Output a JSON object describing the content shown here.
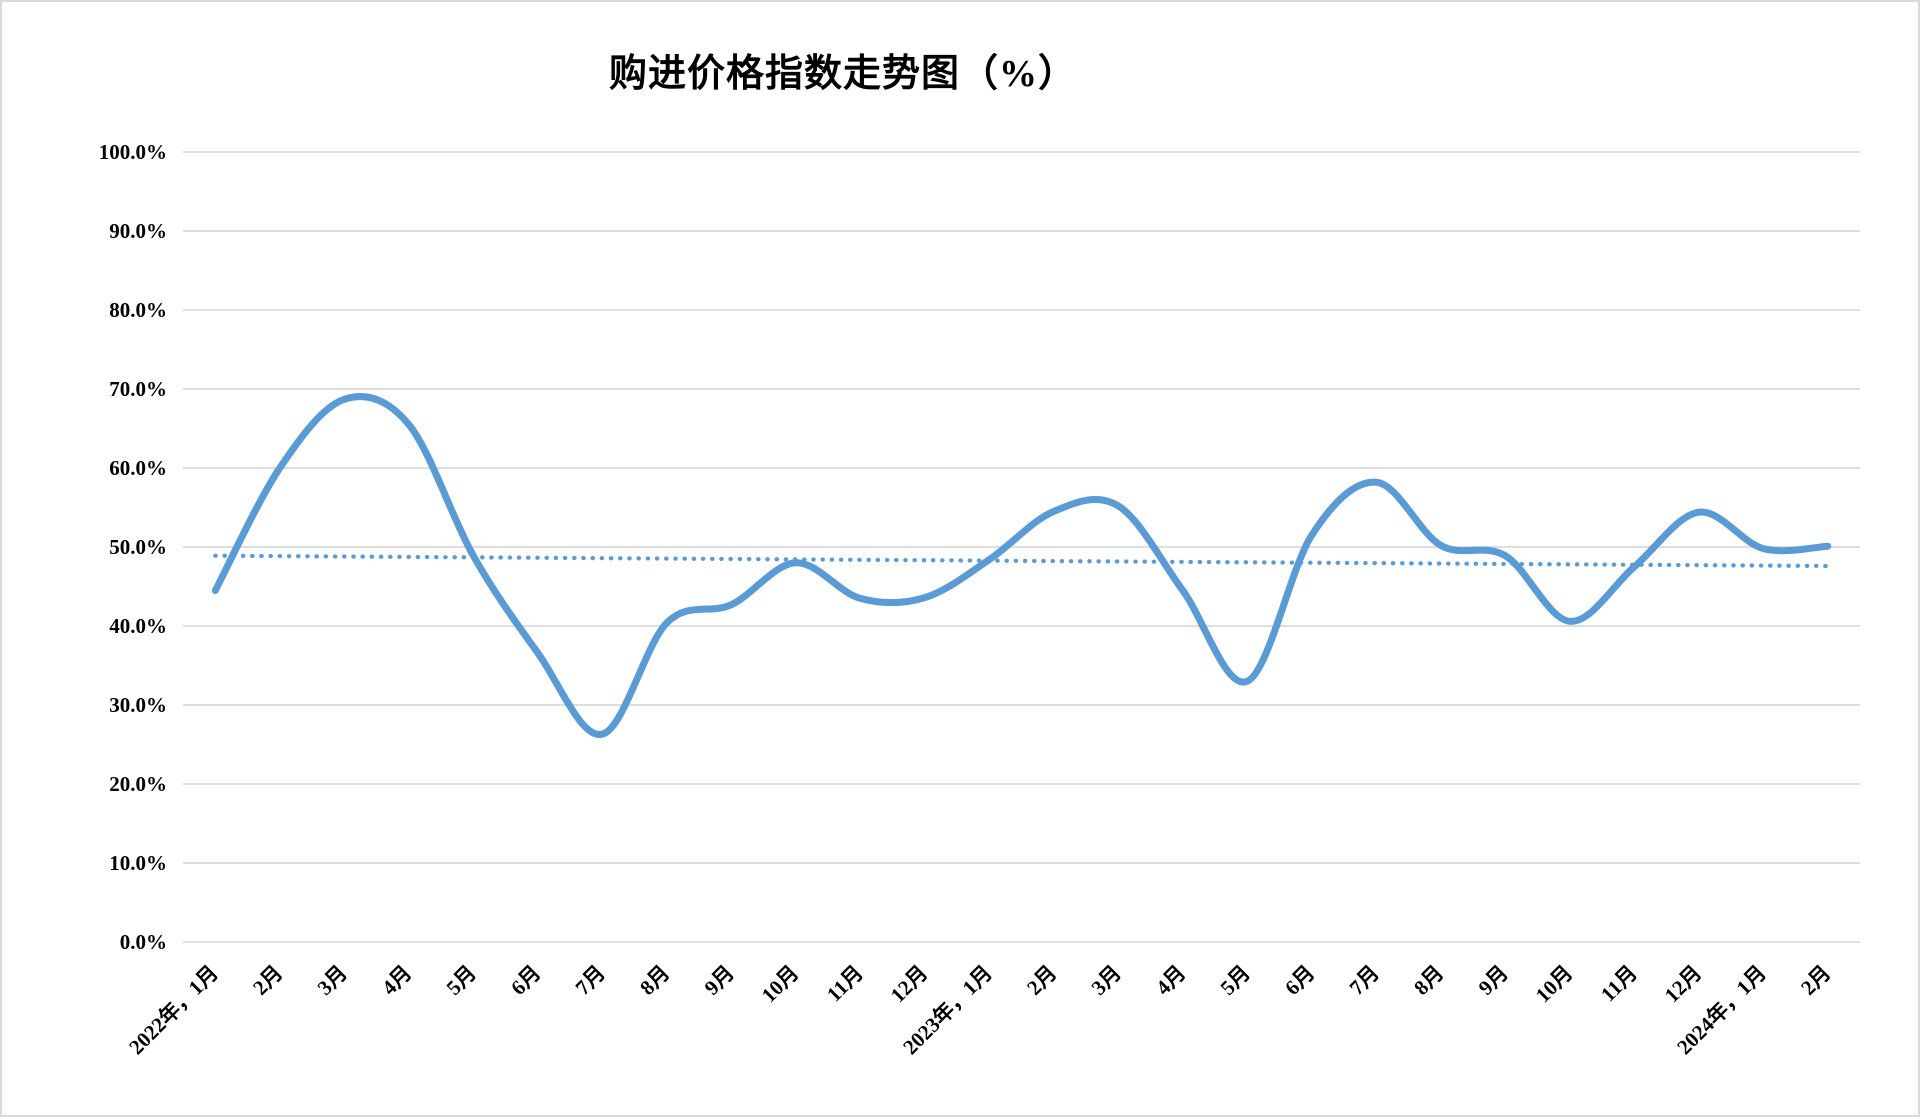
{
  "chart_data": {
    "type": "line",
    "title": "购进价格指数走势图（%）",
    "categories": [
      "2022年，1月",
      "2月",
      "3月",
      "4月",
      "5月",
      "6月",
      "7月",
      "8月",
      "9月",
      "10月",
      "11月",
      "12月",
      "2023年，1月",
      "2月",
      "3月",
      "4月",
      "5月",
      "6月",
      "7月",
      "8月",
      "9月",
      "10月",
      "11月",
      "12月",
      "2024年，1月",
      "2月"
    ],
    "values": [
      44.5,
      60.0,
      68.7,
      65.5,
      48.9,
      36.6,
      26.3,
      40.4,
      42.7,
      48.0,
      43.5,
      43.6,
      48.4,
      54.5,
      55.2,
      44.5,
      33.0,
      51.5,
      58.2,
      50.2,
      48.9,
      40.6,
      47.5,
      54.4,
      49.8,
      50.1
    ],
    "trendline": {
      "style": "dotted",
      "start_value": 48.9,
      "end_value": 47.6
    },
    "ylim": [
      0,
      100
    ],
    "ytick_step": 10,
    "ytick_labels": [
      "0.0%",
      "10.0%",
      "20.0%",
      "30.0%",
      "40.0%",
      "50.0%",
      "60.0%",
      "70.0%",
      "80.0%",
      "90.0%",
      "100.0%"
    ],
    "grid": true,
    "legend": false,
    "colors": {
      "line": "#5B9BD5",
      "trendline": "#5B9BD5",
      "gridline": "#D9D9D9",
      "text": "#000000",
      "background": "#FFFFFF"
    }
  }
}
